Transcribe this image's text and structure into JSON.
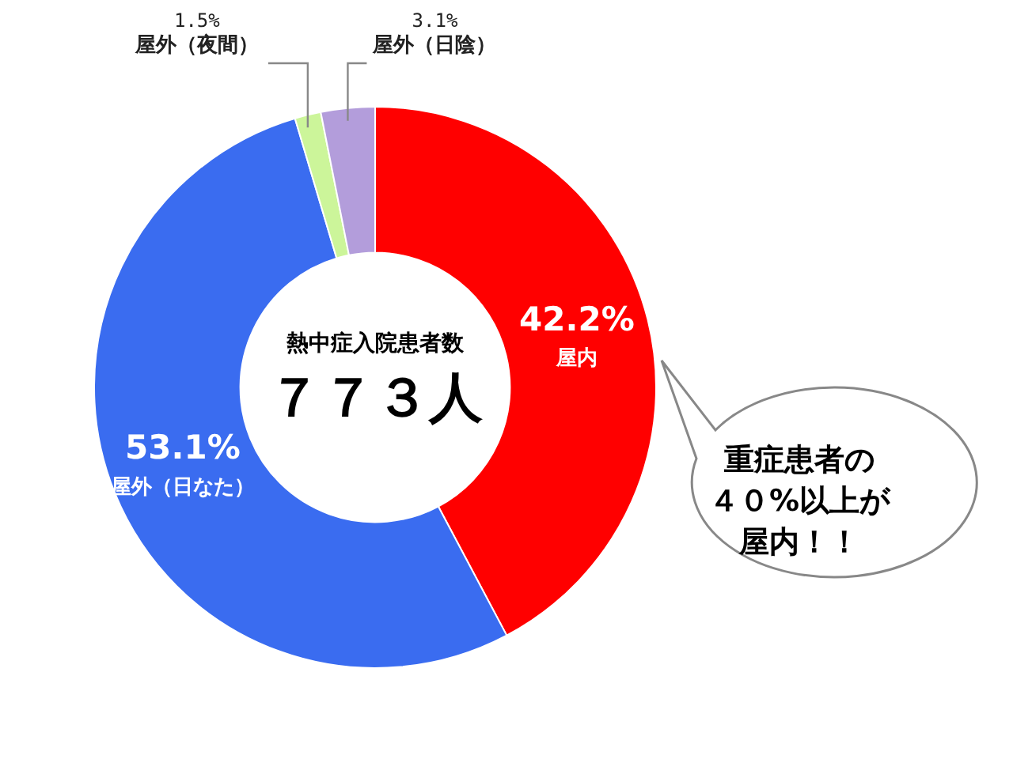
{
  "chart_data": {
    "type": "donut",
    "categories": [
      "屋内",
      "屋外（日なた）",
      "屋外（夜間）",
      "屋外（日陰）"
    ],
    "values": [
      42.2,
      53.1,
      1.5,
      3.1
    ],
    "colors": [
      "#ff0000",
      "#3a6cf0",
      "#ccf59a",
      "#b39ddb"
    ],
    "value_labels": [
      "42.2%",
      "53.1%",
      "1.5%",
      "3.1%"
    ],
    "legend": false,
    "annotations": [
      "熱中症入院患者数",
      "７７３人",
      "重症患者の",
      "４０%以上が",
      "屋内！！"
    ]
  }
}
